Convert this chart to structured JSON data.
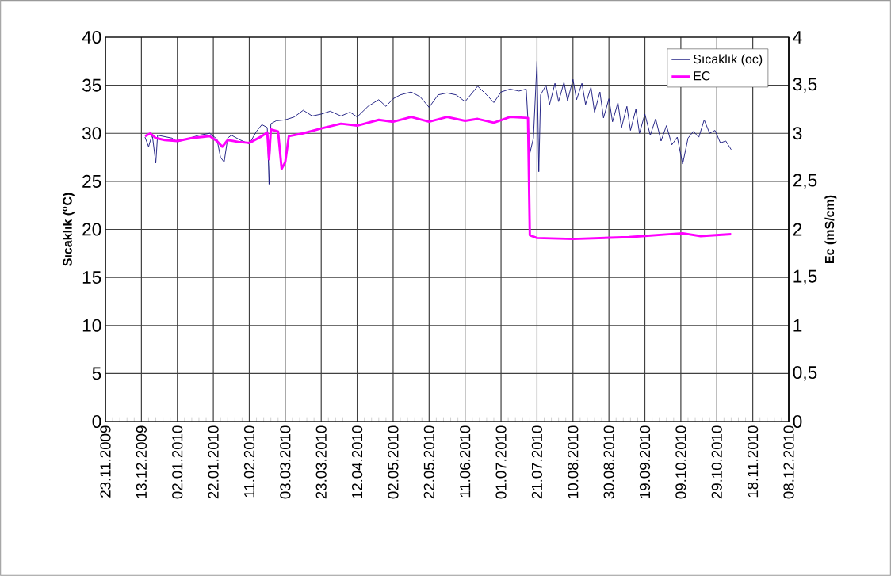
{
  "chart_data": {
    "type": "line",
    "xlabel": null,
    "ylabel": "Sıcaklık ($^{o}$C)",
    "y2label": "Ec (mS/cm)",
    "xlim": [
      "2009-11-23",
      "2010-12-08"
    ],
    "xticks": [
      {
        "value": "2009-11-23",
        "label": "23.11.2009"
      },
      {
        "value": "2009-12-13",
        "label": "13.12.2009"
      },
      {
        "value": "2010-01-02",
        "label": "02.01.2010"
      },
      {
        "value": "2010-01-22",
        "label": "22.01.2010"
      },
      {
        "value": "2010-02-11",
        "label": "11.02.2010"
      },
      {
        "value": "2010-03-03",
        "label": "03.03.2010"
      },
      {
        "value": "2010-03-23",
        "label": "23.03.2010"
      },
      {
        "value": "2010-04-12",
        "label": "12.04.2010"
      },
      {
        "value": "2010-05-02",
        "label": "02.05.2010"
      },
      {
        "value": "2010-05-22",
        "label": "22.05.2010"
      },
      {
        "value": "2010-06-11",
        "label": "11.06.2010"
      },
      {
        "value": "2010-07-01",
        "label": "01.07.2010"
      },
      {
        "value": "2010-07-21",
        "label": "21.07.2010"
      },
      {
        "value": "2010-08-10",
        "label": "10.08.2010"
      },
      {
        "value": "2010-08-30",
        "label": "30.08.2010"
      },
      {
        "value": "2010-09-19",
        "label": "19.09.2010"
      },
      {
        "value": "2010-10-09",
        "label": "09.10.2010"
      },
      {
        "value": "2010-10-29",
        "label": "29.10.2010"
      },
      {
        "value": "2010-11-18",
        "label": "18.11.2010"
      },
      {
        "value": "2010-12-08",
        "label": "08.12.2010"
      }
    ],
    "ylim": [
      0,
      40
    ],
    "yticks": [
      0,
      5,
      10,
      15,
      20,
      25,
      30,
      35,
      40
    ],
    "y2lim": [
      0,
      4
    ],
    "y2ticks": [
      0,
      {
        "value": 0.5,
        "label": "0,5"
      },
      1,
      {
        "value": 1.5,
        "label": "1,5"
      },
      2,
      {
        "value": 2.5,
        "label": "2,5"
      },
      3,
      {
        "value": 3.5,
        "label": "3,5"
      },
      4
    ],
    "grid": true,
    "legend": "top right",
    "series": [
      {
        "name": "Sıcaklık (oc)",
        "color": "#1a1a80",
        "x": [
          "2009-12-15",
          "2009-12-17",
          "2009-12-19",
          "2009-12-21",
          "2009-12-22",
          "2009-12-26",
          "2009-12-30",
          "2010-01-02",
          "2010-01-08",
          "2010-01-14",
          "2010-01-20",
          "2010-01-24",
          "2010-01-26",
          "2010-01-28",
          "2010-01-30",
          "2010-02-01",
          "2010-02-06",
          "2010-02-11",
          "2010-02-15",
          "2010-02-18",
          "2010-02-21",
          "2010-02-22",
          "2010-02-23",
          "2010-02-26",
          "2010-03-03",
          "2010-03-08",
          "2010-03-13",
          "2010-03-18",
          "2010-03-23",
          "2010-03-28",
          "2010-04-03",
          "2010-04-08",
          "2010-04-12",
          "2010-04-18",
          "2010-04-24",
          "2010-04-28",
          "2010-05-02",
          "2010-05-06",
          "2010-05-12",
          "2010-05-17",
          "2010-05-22",
          "2010-05-27",
          "2010-06-01",
          "2010-06-06",
          "2010-06-11",
          "2010-06-18",
          "2010-06-23",
          "2010-06-27",
          "2010-07-01",
          "2010-07-06",
          "2010-07-11",
          "2010-07-15",
          "2010-07-17",
          "2010-07-19",
          "2010-07-21",
          "2010-07-22",
          "2010-07-23",
          "2010-07-26",
          "2010-07-28",
          "2010-07-31",
          "2010-08-02",
          "2010-08-05",
          "2010-08-07",
          "2010-08-10",
          "2010-08-12",
          "2010-08-15",
          "2010-08-17",
          "2010-08-20",
          "2010-08-22",
          "2010-08-25",
          "2010-08-27",
          "2010-08-30",
          "2010-09-01",
          "2010-09-04",
          "2010-09-06",
          "2010-09-09",
          "2010-09-11",
          "2010-09-14",
          "2010-09-16",
          "2010-09-19",
          "2010-09-22",
          "2010-09-25",
          "2010-09-28",
          "2010-10-01",
          "2010-10-04",
          "2010-10-07",
          "2010-10-10",
          "2010-10-13",
          "2010-10-16",
          "2010-10-19",
          "2010-10-22",
          "2010-10-25",
          "2010-10-28",
          "2010-10-31",
          "2010-11-03",
          "2010-11-06"
        ],
        "values": [
          29.6,
          28.6,
          29.9,
          26.9,
          29.8,
          null,
          29.5,
          29.1,
          null,
          29.8,
          30.0,
          29.4,
          27.5,
          27.0,
          29.5,
          29.8,
          29.3,
          28.9,
          30.2,
          30.9,
          30.6,
          24.7,
          31.0,
          31.3,
          31.4,
          31.7,
          32.4,
          31.8,
          32.0,
          32.3,
          31.8,
          32.2,
          31.7,
          32.8,
          33.5,
          32.8,
          33.6,
          34.0,
          34.3,
          33.8,
          32.7,
          34.0,
          34.2,
          34.0,
          33.3,
          34.9,
          34.0,
          33.2,
          34.3,
          34.6,
          34.4,
          34.6,
          27.9,
          29.5,
          37.5,
          26.0,
          34.0,
          35.0,
          33.0,
          35.2,
          33.3,
          35.3,
          33.4,
          35.6,
          33.5,
          35.2,
          33.0,
          34.8,
          32.2,
          34.3,
          31.6,
          33.6,
          31.2,
          33.2,
          30.6,
          32.8,
          30.3,
          32.5,
          30.0,
          32.0,
          29.8,
          31.5,
          29.2,
          30.8,
          28.8,
          29.6,
          26.8,
          29.5,
          30.2,
          29.6,
          31.4,
          30.0,
          30.3,
          29.0,
          29.2,
          28.3
        ]
      },
      {
        "name": "EC",
        "color": "#ff00ff",
        "axis": "y2",
        "x": [
          "2009-12-15",
          "2009-12-18",
          "2009-12-21",
          "2009-12-26",
          "2010-01-02",
          "2010-01-10",
          "2010-01-20",
          "2010-01-24",
          "2010-01-27",
          "2010-01-30",
          "2010-02-05",
          "2010-02-11",
          "2010-02-18",
          "2010-02-21",
          "2010-02-22",
          "2010-02-23",
          "2010-02-27",
          "2010-03-01",
          "2010-03-03",
          "2010-03-05",
          "2010-03-13",
          "2010-03-23",
          "2010-04-03",
          "2010-04-12",
          "2010-04-24",
          "2010-05-02",
          "2010-05-12",
          "2010-05-22",
          "2010-06-01",
          "2010-06-11",
          "2010-06-18",
          "2010-06-27",
          "2010-07-06",
          "2010-07-16",
          "2010-07-17",
          "2010-07-21",
          "2010-08-10",
          "2010-09-10",
          "2010-10-10",
          "2010-10-20",
          "2010-11-06"
        ],
        "values": [
          2.97,
          3.0,
          2.95,
          2.93,
          2.92,
          2.95,
          2.97,
          2.92,
          2.86,
          2.93,
          2.91,
          2.9,
          2.97,
          3.01,
          2.73,
          3.04,
          3.02,
          2.63,
          2.7,
          2.97,
          3.0,
          3.05,
          3.1,
          3.08,
          3.14,
          3.12,
          3.17,
          3.12,
          3.17,
          3.13,
          3.15,
          3.11,
          3.17,
          3.16,
          1.94,
          1.91,
          1.9,
          1.92,
          1.96,
          1.93,
          1.95
        ]
      }
    ]
  }
}
